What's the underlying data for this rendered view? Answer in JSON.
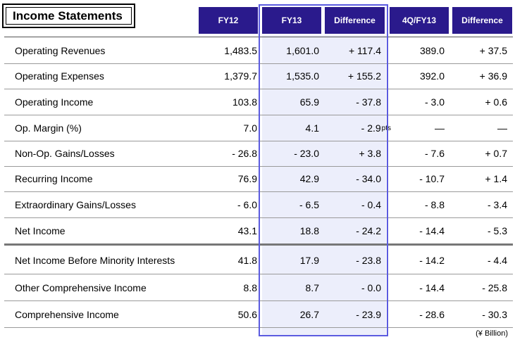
{
  "title": "Income Statements",
  "headers": [
    "FY12",
    "FY13",
    "Difference",
    "4Q/FY13",
    "Difference"
  ],
  "rows": [
    {
      "label": "Operating Revenues",
      "fy12": "1,483.5",
      "fy13": "1,601.0",
      "diff": "+ 117.4",
      "q4": "389.0",
      "qdiff": "+ 37.5"
    },
    {
      "label": "Operating Expenses",
      "fy12": "1,379.7",
      "fy13": "1,535.0",
      "diff": "+ 155.2",
      "q4": "392.0",
      "qdiff": "+ 36.9"
    },
    {
      "label": "Operating Income",
      "fy12": "103.8",
      "fy13": "65.9",
      "diff": "- 37.8",
      "q4": "- 3.0",
      "qdiff": "+ 0.6"
    },
    {
      "label": "Op. Margin (%)",
      "fy12": "7.0",
      "fy13": "4.1",
      "diff": "- 2.9",
      "diff_unit": "pts",
      "q4": "—",
      "qdiff": "—"
    },
    {
      "label": "Non-Op. Gains/Losses",
      "fy12": "- 26.8",
      "fy13": "- 23.0",
      "diff": "+ 3.8",
      "q4": "- 7.6",
      "qdiff": "+ 0.7"
    },
    {
      "label": "Recurring Income",
      "fy12": "76.9",
      "fy13": "42.9",
      "diff": "- 34.0",
      "q4": "- 10.7",
      "qdiff": "+ 1.4"
    },
    {
      "label": "Extraordinary Gains/Losses",
      "fy12": "- 6.0",
      "fy13": "- 6.5",
      "diff": "- 0.4",
      "q4": "- 8.8",
      "qdiff": "- 3.4"
    },
    {
      "label": "Net Income",
      "fy12": "43.1",
      "fy13": "18.8",
      "diff": "- 24.2",
      "q4": "- 14.4",
      "qdiff": "- 5.3"
    },
    {
      "label": "Net Income Before Minority Interests",
      "fy12": "41.8",
      "fy13": "17.9",
      "diff": "- 23.8",
      "q4": "- 14.2",
      "qdiff": "- 4.4"
    },
    {
      "label": "Other Comprehensive Income",
      "fy12": "8.8",
      "fy13": "8.7",
      "diff": "- 0.0",
      "q4": "- 14.4",
      "qdiff": "- 25.8"
    },
    {
      "label": "Comprehensive Income",
      "fy12": "50.6",
      "fy13": "26.7",
      "diff": "- 23.9",
      "q4": "- 28.6",
      "qdiff": "- 30.3"
    }
  ],
  "unit_note": "(¥ Billion)"
}
